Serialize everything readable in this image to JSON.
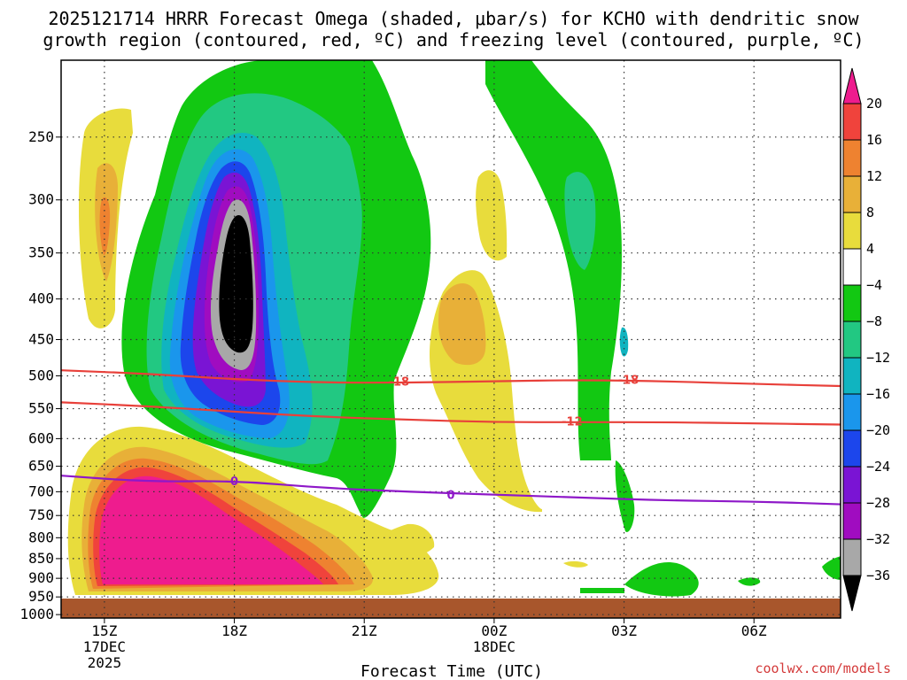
{
  "title": {
    "line1": "2025121714 HRRR Forecast Omega (shaded, μbar/s) for KCHO with dendritic snow",
    "line2": "growth region (contoured, red, ºC) and freezing level (contoured, purple, ºC)"
  },
  "credit": "coolwx.com/models",
  "chart_data": {
    "type": "heatmap",
    "xlabel": "Forecast Time (UTC)",
    "ylabel": "",
    "x_ticks": [
      {
        "label": "15Z",
        "sub1": "17DEC",
        "sub2": "2025",
        "hour": 15
      },
      {
        "label": "18Z",
        "sub1": "",
        "sub2": "",
        "hour": 18
      },
      {
        "label": "21Z",
        "sub1": "",
        "sub2": "",
        "hour": 21
      },
      {
        "label": "00Z",
        "sub1": "18DEC",
        "sub2": "",
        "hour": 24
      },
      {
        "label": "03Z",
        "sub1": "",
        "sub2": "",
        "hour": 27
      },
      {
        "label": "06Z",
        "sub1": "",
        "sub2": "",
        "hour": 30
      }
    ],
    "xlim": [
      14,
      32
    ],
    "y_ticks": [
      250,
      300,
      350,
      400,
      450,
      500,
      550,
      600,
      650,
      700,
      750,
      800,
      850,
      900,
      950,
      1000
    ],
    "ylim_hPa": [
      200,
      1010
    ],
    "colorbar": {
      "labels": [
        "20",
        "16",
        "12",
        "8",
        "4",
        "−4",
        "−8",
        "−12",
        "−16",
        "−20",
        "−24",
        "−28",
        "−32",
        "−36"
      ],
      "colors": [
        "#ee1c8e",
        "#f0433c",
        "#ee8230",
        "#e8b038",
        "#e8dc3c",
        "#ffffff",
        "#12c812",
        "#22c882",
        "#10b4c0",
        "#1a96ec",
        "#1c46ec",
        "#7a14d4",
        "#a00cc0",
        "#a8a8a8",
        "#000000"
      ]
    },
    "contours": [
      {
        "label": "-18",
        "color": "#e8403a",
        "hours": [
          14,
          16,
          18,
          20,
          22,
          24,
          26,
          28,
          30,
          32
        ],
        "hPa": [
          492,
          497,
          505,
          510,
          510,
          508,
          506,
          508,
          512,
          515
        ]
      },
      {
        "label": "-12",
        "color": "#e8403a",
        "hours": [
          14,
          16,
          18,
          20,
          22,
          24,
          26,
          28,
          30,
          32
        ],
        "hPa": [
          540,
          546,
          555,
          563,
          568,
          572,
          572,
          572,
          574,
          576
        ]
      },
      {
        "label": "0",
        "color": "#8e18c8",
        "hours": [
          14,
          16,
          18,
          20,
          22,
          24,
          26,
          28,
          30,
          32
        ],
        "hPa": [
          668,
          680,
          678,
          692,
          700,
          706,
          712,
          718,
          720,
          726
        ]
      }
    ],
    "contour_labels": [
      {
        "text": "-18",
        "hour": 21.8,
        "hPa": 508
      },
      {
        "text": "-18",
        "hour": 27.1,
        "hPa": 505
      },
      {
        "text": "-12",
        "hour": 25.8,
        "hPa": 570
      },
      {
        "text": "0",
        "hour": 18.0,
        "hPa": 678
      },
      {
        "text": "0",
        "hour": 23.0,
        "hPa": 706
      }
    ],
    "omega_features": [
      {
        "name": "ascent-core",
        "center_hour": 18.0,
        "center_hPa": 400,
        "min_value": -36
      },
      {
        "name": "low-level-descent",
        "center_hour": 17.0,
        "center_hPa": 860,
        "max_value": 20
      }
    ]
  }
}
